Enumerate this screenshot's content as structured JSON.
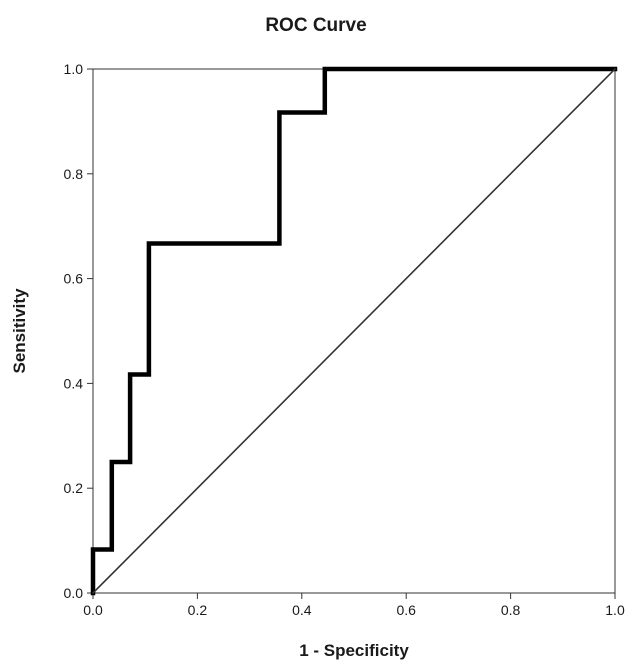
{
  "chart_data": {
    "type": "line",
    "title": "ROC Curve",
    "xlabel": "1 - Specificity",
    "ylabel": "Sensitivity",
    "xlim": [
      0,
      1
    ],
    "ylim": [
      0,
      1
    ],
    "x_ticks": [
      "0.0",
      "0.2",
      "0.4",
      "0.6",
      "0.8",
      "1.0"
    ],
    "y_ticks": [
      "0.0",
      "0.2",
      "0.4",
      "0.6",
      "0.8",
      "1.0"
    ],
    "grid": false,
    "legend": "none",
    "series": [
      {
        "style": "step",
        "color": "#000000",
        "x": [
          0.0,
          0.0,
          0.036,
          0.036,
          0.071,
          0.071,
          0.107,
          0.107,
          0.357,
          0.357,
          0.444,
          0.444,
          1.0
        ],
        "y": [
          0.0,
          0.083,
          0.083,
          0.25,
          0.25,
          0.417,
          0.417,
          0.667,
          0.667,
          0.917,
          0.917,
          1.0,
          1.0
        ]
      },
      {
        "style": "reference-diagonal",
        "color": "#333333",
        "x": [
          0.0,
          1.0
        ],
        "y": [
          0.0,
          1.0
        ]
      }
    ]
  }
}
